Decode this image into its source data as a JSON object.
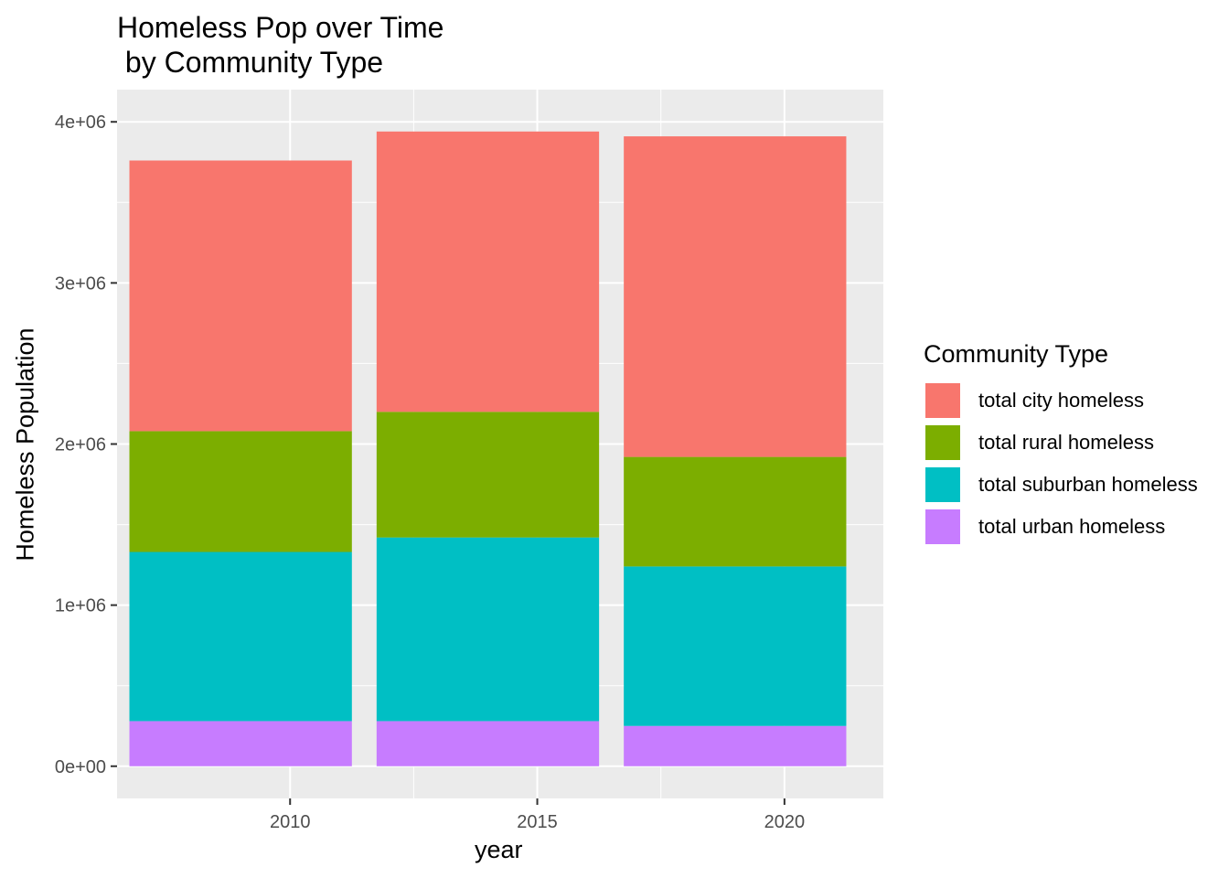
{
  "chart_data": {
    "type": "bar",
    "stacked": true,
    "title": "Homeless Pop over Time\n by Community Type",
    "xlabel": "year",
    "ylabel": "Homeless Population",
    "categories": [
      2009,
      2014,
      2019
    ],
    "x_ticks": [
      2010,
      2015,
      2020
    ],
    "x_tick_labels": [
      "2010",
      "2015",
      "2020"
    ],
    "xlim": [
      2006.5,
      2022
    ],
    "ylim": [
      -200000,
      4200000
    ],
    "y_ticks": [
      0,
      1000000,
      2000000,
      3000000,
      4000000
    ],
    "y_tick_labels": [
      "0e+00",
      "1e+06",
      "2e+06",
      "3e+06",
      "4e+06"
    ],
    "bar_width_years": 4.5,
    "grid": true,
    "legend": {
      "title": "Community Type",
      "position": "right"
    },
    "series": [
      {
        "name": "total urban homeless",
        "color": "#C77CFF",
        "values": [
          280000,
          280000,
          250000
        ]
      },
      {
        "name": "total suburban homeless",
        "color": "#00BFC4",
        "values": [
          1050000,
          1140000,
          990000
        ]
      },
      {
        "name": "total rural homeless",
        "color": "#7CAE00",
        "values": [
          750000,
          780000,
          680000
        ]
      },
      {
        "name": "total city homeless",
        "color": "#F8766D",
        "values": [
          1680000,
          1740000,
          1990000
        ]
      }
    ]
  }
}
